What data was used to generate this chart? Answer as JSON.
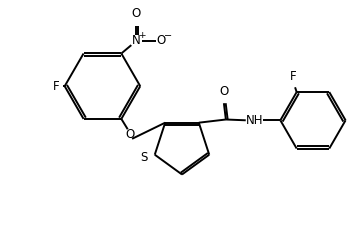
{
  "background_color": "#ffffff",
  "line_color": "#000000",
  "line_width": 1.4,
  "font_size": 8.5,
  "fig_width": 3.64,
  "fig_height": 2.4,
  "dpi": 100,
  "xlim": [
    0,
    9.1
  ],
  "ylim": [
    0,
    6.0
  ]
}
